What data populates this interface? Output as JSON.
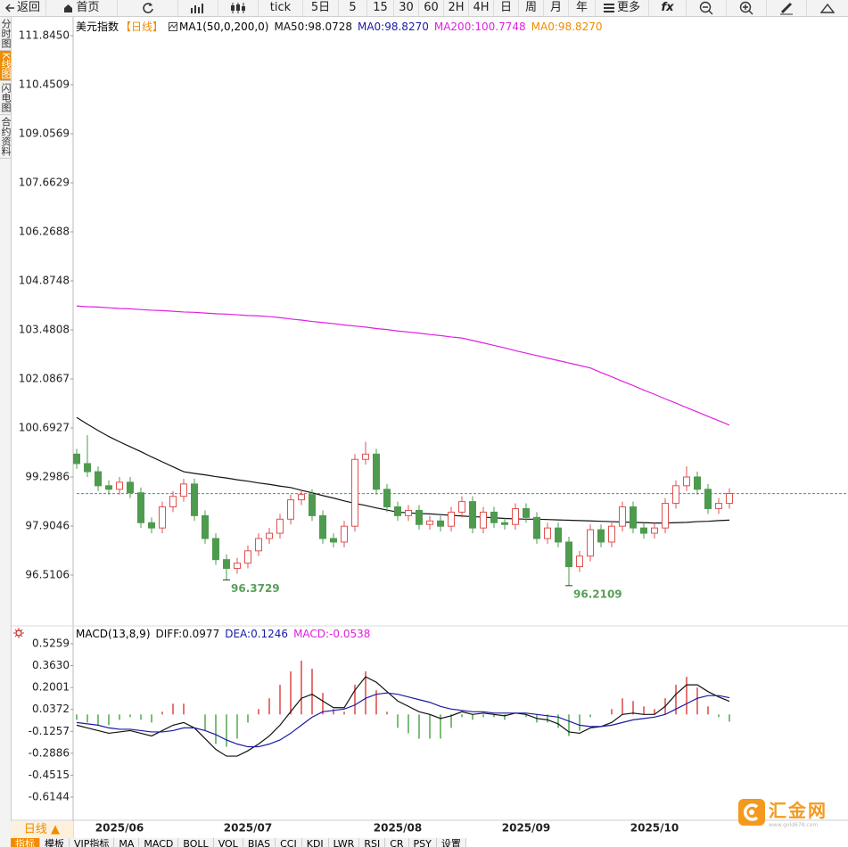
{
  "toolbar": [
    "返回",
    "首页",
    "tick",
    "5日",
    "5",
    "15",
    "30",
    "60",
    "2H",
    "4H",
    "日",
    "周",
    "月",
    "年",
    "更多",
    "fx"
  ],
  "sidebar": [
    "分时图",
    "K线图",
    "闪电图",
    "合约资料"
  ],
  "chart_data": [
    {
      "type": "candlestick",
      "title": "美元指数",
      "period": "【日线】",
      "indicator": "MA1(50,0,200,0)",
      "categories": [
        null,
        null,
        null,
        null,
        "2025/06",
        null,
        null,
        null,
        null,
        null,
        null,
        null,
        null,
        null,
        null,
        null,
        "2025/07",
        null,
        null,
        null,
        null,
        null,
        null,
        null,
        null,
        null,
        null,
        null,
        null,
        null,
        "2025/08",
        null,
        null,
        null,
        null,
        null,
        null,
        null,
        null,
        null,
        null,
        null,
        "2025/09",
        null,
        null,
        null,
        null,
        null,
        null,
        null,
        null,
        null,
        null,
        null,
        "2025/10",
        null,
        null,
        null,
        null,
        null,
        null,
        null
      ],
      "open": [
        99.95,
        99.68,
        99.45,
        99.05,
        98.95,
        99.15,
        98.85,
        98.0,
        97.85,
        98.45,
        98.75,
        99.1,
        98.2,
        97.55,
        96.95,
        96.7,
        96.85,
        97.2,
        97.55,
        97.7,
        98.1,
        98.65,
        98.8,
        98.2,
        97.55,
        97.45,
        97.9,
        99.8,
        99.95,
        98.95,
        98.45,
        98.2,
        98.35,
        97.95,
        98.05,
        97.9,
        98.3,
        98.6,
        97.85,
        98.3,
        98.0,
        97.95,
        98.4,
        98.15,
        97.55,
        97.85,
        97.45,
        96.75,
        97.05,
        97.8,
        97.45,
        97.9,
        98.45,
        97.85,
        97.7,
        97.85,
        98.55,
        99.05,
        99.3,
        98.95,
        98.4,
        98.55
      ],
      "high": [
        100.1,
        100.49,
        99.6,
        99.2,
        99.3,
        99.3,
        99.0,
        98.15,
        98.6,
        98.9,
        99.25,
        99.25,
        98.35,
        97.7,
        97.1,
        97.0,
        97.35,
        97.7,
        97.85,
        98.25,
        98.8,
        98.95,
        98.95,
        98.35,
        97.7,
        98.05,
        99.95,
        100.3,
        100.1,
        99.1,
        98.6,
        98.5,
        98.5,
        98.2,
        98.2,
        98.45,
        98.75,
        98.75,
        98.45,
        98.45,
        98.15,
        98.55,
        98.55,
        98.3,
        98.0,
        98.0,
        97.6,
        97.2,
        97.95,
        97.95,
        98.05,
        98.6,
        98.6,
        98.0,
        98.0,
        98.7,
        99.2,
        99.6,
        99.45,
        99.1,
        98.7,
        98.98
      ],
      "low": [
        99.53,
        99.3,
        98.9,
        98.8,
        98.8,
        98.7,
        97.85,
        97.7,
        97.7,
        98.3,
        98.6,
        98.05,
        97.4,
        96.8,
        96.3729,
        96.55,
        96.7,
        97.05,
        97.4,
        97.55,
        97.95,
        98.5,
        98.05,
        97.4,
        97.3,
        97.3,
        97.75,
        99.65,
        98.8,
        98.3,
        98.05,
        98.05,
        97.8,
        97.8,
        97.75,
        97.75,
        98.15,
        97.7,
        97.7,
        97.85,
        97.8,
        97.8,
        98.0,
        97.4,
        97.4,
        97.3,
        96.2109,
        96.6,
        96.9,
        97.3,
        97.3,
        97.75,
        97.7,
        97.55,
        97.55,
        97.7,
        98.4,
        98.9,
        98.8,
        98.25,
        98.25,
        98.4
      ],
      "close": [
        99.68,
        99.45,
        99.05,
        98.95,
        99.15,
        98.85,
        98.0,
        97.85,
        98.45,
        98.75,
        99.1,
        98.2,
        97.55,
        96.95,
        96.7,
        96.85,
        97.2,
        97.55,
        97.7,
        98.1,
        98.65,
        98.8,
        98.2,
        97.55,
        97.45,
        97.9,
        99.8,
        99.95,
        98.95,
        98.45,
        98.2,
        98.35,
        97.95,
        98.05,
        97.9,
        98.3,
        98.6,
        97.85,
        98.3,
        98.0,
        97.95,
        98.4,
        98.15,
        97.55,
        97.85,
        97.45,
        96.75,
        97.05,
        97.8,
        97.45,
        97.9,
        98.45,
        97.85,
        97.7,
        97.85,
        98.55,
        99.05,
        99.3,
        98.95,
        98.4,
        98.55,
        98.83
      ],
      "up_color": "#e0524f",
      "down_color": "#4e9a4e",
      "series": [
        {
          "name": "MA50:98.0728",
          "color": "#111111",
          "values": [
            100.99,
            100.8,
            100.62,
            100.45,
            100.3,
            100.16,
            100.02,
            99.87,
            99.73,
            99.59,
            99.45,
            99.4,
            99.36,
            99.31,
            99.27,
            99.22,
            99.18,
            99.13,
            99.09,
            99.04,
            99.0,
            98.92,
            98.85,
            98.77,
            98.7,
            98.62,
            98.55,
            98.49,
            98.42,
            98.36,
            98.3,
            98.28,
            98.26,
            98.25,
            98.23,
            98.21,
            98.19,
            98.17,
            98.16,
            98.14,
            98.12,
            98.11,
            98.1,
            98.1,
            98.09,
            98.08,
            98.07,
            98.06,
            98.05,
            98.04,
            98.03,
            98.02,
            98.01,
            98.0,
            97.99,
            97.99,
            98.0,
            98.01,
            98.03,
            98.04,
            98.06,
            98.0728
          ]
        },
        {
          "name": "MA200:100.7748",
          "color": "#e020e0",
          "values": [
            104.16,
            104.14,
            104.13,
            104.11,
            104.09,
            104.08,
            104.06,
            104.04,
            104.03,
            104.01,
            103.99,
            103.98,
            103.96,
            103.94,
            103.93,
            103.91,
            103.89,
            103.88,
            103.86,
            103.83,
            103.79,
            103.76,
            103.72,
            103.69,
            103.66,
            103.62,
            103.59,
            103.56,
            103.52,
            103.49,
            103.45,
            103.42,
            103.39,
            103.35,
            103.32,
            103.28,
            103.25,
            103.18,
            103.11,
            103.04,
            102.97,
            102.89,
            102.82,
            102.75,
            102.68,
            102.61,
            102.54,
            102.47,
            102.4,
            102.27,
            102.15,
            102.02,
            101.9,
            101.77,
            101.65,
            101.52,
            101.4,
            101.27,
            101.15,
            101.02,
            100.9,
            100.7748
          ]
        }
      ],
      "ma0_labels": [
        {
          "name": "MA0:98.8270",
          "color": "#1a1aa6"
        },
        {
          "name": "MA0:98.8270",
          "color": "#f08c00"
        }
      ],
      "last": 98.827,
      "last_color": "#2a9d9d",
      "label_color": "#5a9e5a",
      "ylim": [
        95.117,
        112.403
      ],
      "yticks": [
        {
          "value": 111.845,
          "label": "111.8450"
        },
        {
          "value": 110.4509,
          "label": "110.4509"
        },
        {
          "value": 109.0569,
          "label": "109.0569"
        },
        {
          "value": 107.6629,
          "label": "107.6629"
        },
        {
          "value": 106.2688,
          "label": "106.2688"
        },
        {
          "value": 104.8748,
          "label": "104.8748"
        },
        {
          "value": 103.4808,
          "label": "103.4808"
        },
        {
          "value": 102.0867,
          "label": "102.0867"
        },
        {
          "value": 100.6927,
          "label": "100.6927"
        },
        {
          "value": 99.2986,
          "label": "99.2986"
        },
        {
          "value": 97.9046,
          "label": "97.9046"
        },
        {
          "value": 96.5106,
          "label": "96.5106"
        }
      ]
    },
    {
      "type": "macd",
      "title": "MACD(13,8,9)",
      "series": [
        {
          "name": "DIFF:0.0977",
          "color": "#111111",
          "values": [
            -0.08,
            -0.1,
            -0.12,
            -0.14,
            -0.13,
            -0.12,
            -0.14,
            -0.16,
            -0.12,
            -0.08,
            -0.06,
            -0.1,
            -0.18,
            -0.26,
            -0.31,
            -0.31,
            -0.27,
            -0.22,
            -0.16,
            -0.08,
            0.02,
            0.12,
            0.15,
            0.1,
            0.05,
            0.05,
            0.18,
            0.28,
            0.24,
            0.17,
            0.1,
            0.06,
            0.02,
            0.0,
            -0.03,
            -0.01,
            0.02,
            0.0,
            0.01,
            0.0,
            -0.01,
            0.01,
            0.0,
            -0.03,
            -0.04,
            -0.07,
            -0.13,
            -0.14,
            -0.1,
            -0.09,
            -0.06,
            0.0,
            0.01,
            0.0,
            0.0,
            0.06,
            0.15,
            0.22,
            0.22,
            0.17,
            0.13,
            0.0977
          ]
        },
        {
          "name": "DEA:0.1246",
          "color": "#1a1aa6",
          "values": [
            -0.06,
            -0.07,
            -0.08,
            -0.1,
            -0.11,
            -0.11,
            -0.12,
            -0.13,
            -0.13,
            -0.12,
            -0.1,
            -0.1,
            -0.12,
            -0.15,
            -0.19,
            -0.22,
            -0.24,
            -0.24,
            -0.22,
            -0.19,
            -0.14,
            -0.08,
            -0.02,
            0.02,
            0.03,
            0.04,
            0.07,
            0.12,
            0.15,
            0.16,
            0.15,
            0.13,
            0.11,
            0.09,
            0.06,
            0.04,
            0.03,
            0.02,
            0.02,
            0.01,
            0.01,
            0.01,
            0.01,
            0.0,
            -0.01,
            -0.02,
            -0.05,
            -0.08,
            -0.09,
            -0.09,
            -0.08,
            -0.06,
            -0.04,
            -0.03,
            -0.02,
            0.0,
            0.04,
            0.08,
            0.12,
            0.14,
            0.14,
            0.1246
          ]
        },
        {
          "name": "MACD:-0.0538",
          "color": "#e020e0",
          "values": [
            -0.04,
            -0.06,
            -0.08,
            -0.08,
            -0.04,
            -0.02,
            -0.04,
            -0.06,
            0.02,
            0.08,
            0.08,
            0,
            -0.12,
            -0.22,
            -0.24,
            -0.18,
            -0.06,
            0.04,
            0.12,
            0.22,
            0.32,
            0.4,
            0.34,
            0.16,
            0.04,
            0.02,
            0.22,
            0.32,
            0.18,
            0.02,
            -0.1,
            -0.14,
            -0.18,
            -0.18,
            -0.18,
            -0.1,
            -0.02,
            -0.04,
            -0.02,
            -0.02,
            -0.04,
            0,
            -0.02,
            -0.06,
            -0.06,
            -0.1,
            -0.16,
            -0.12,
            -0.02,
            0,
            0.04,
            0.12,
            0.1,
            0.06,
            0.04,
            0.12,
            0.22,
            0.28,
            0.2,
            0.06,
            -0.02,
            -0.0538
          ]
        }
      ],
      "pos_color": "#e0524f",
      "neg_color": "#5aad5a",
      "ylim": [
        -0.7868,
        0.6386
      ],
      "yticks": [
        {
          "value": 0.5259,
          "label": "0.5259"
        },
        {
          "value": 0.363,
          "label": "0.3630"
        },
        {
          "value": 0.2001,
          "label": "0.2001"
        },
        {
          "value": 0.0372,
          "label": "0.0372"
        },
        {
          "value": -0.1257,
          "label": "-0.1257"
        },
        {
          "value": -0.2886,
          "label": "-0.2886"
        },
        {
          "value": -0.4515,
          "label": "-0.4515"
        },
        {
          "value": -0.6144,
          "label": "-0.6144"
        }
      ]
    }
  ],
  "footer": {
    "period_button": "日线 ▲",
    "tabs": [
      "指标",
      "模板",
      "VIP指标",
      "MA",
      "MACD",
      "BOLL",
      "VOL",
      "BIAS",
      "CCI",
      "KDJ",
      "LWR",
      "RSI",
      "CR",
      "PSY",
      "设置"
    ]
  },
  "logo": {
    "name": "汇金网",
    "url": "www.gold678.com"
  }
}
